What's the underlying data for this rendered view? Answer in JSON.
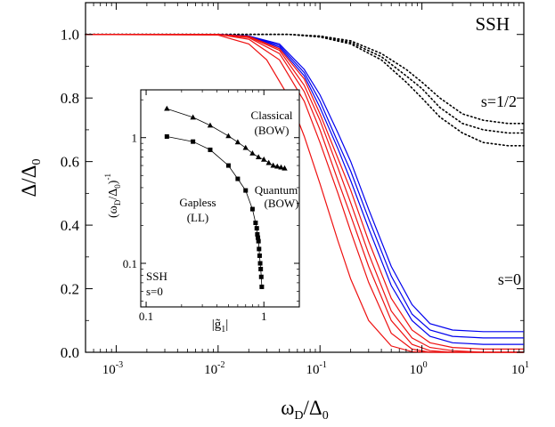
{
  "chart_data": [
    {
      "type": "line",
      "title": "",
      "xlabel_main": "ω",
      "xlabel_sub": "D",
      "xlabel_mid": "/Δ",
      "xlabel_sub2": "0",
      "ylabel_main": "Δ/Δ",
      "ylabel_sub": "0",
      "x_scale": "log",
      "xlim": [
        0.0005,
        10
      ],
      "ylim": [
        0,
        1.1
      ],
      "x_ticks": [
        0.001,
        0.01,
        0.1,
        1,
        10
      ],
      "x_tick_labels": [
        {
          "base": "10",
          "exp": "-3"
        },
        {
          "base": "10",
          "exp": "-2"
        },
        {
          "base": "10",
          "exp": "-1"
        },
        {
          "base": "10",
          "exp": "0"
        },
        {
          "base": "10",
          "exp": "1"
        }
      ],
      "y_ticks": [
        0.0,
        0.2,
        0.4,
        0.6,
        0.8,
        1.0
      ],
      "y_tick_labels": [
        "0.0",
        "0.2",
        "0.4",
        "0.6",
        "0.8",
        "1.0"
      ],
      "annotations": {
        "corner_label": "SSH",
        "upper_curves": "s=1/2",
        "lower_curves": "s=0"
      },
      "grid": false,
      "series_style": [
        {
          "group": "dotted",
          "color": "#000000",
          "dash": "dotted"
        },
        {
          "group": "blue",
          "color": "#0000ee",
          "dash": "solid"
        },
        {
          "group": "red",
          "color": "#ee1111",
          "dash": "solid"
        }
      ],
      "series": [
        {
          "group": "dotted",
          "x": [
            0.0005,
            0.01,
            0.05,
            0.1,
            0.2,
            0.4,
            0.7,
            1.0,
            1.5,
            2.5,
            4.0,
            7.0,
            10.0
          ],
          "y": [
            1.0,
            1.0,
            1.0,
            0.995,
            0.98,
            0.94,
            0.89,
            0.85,
            0.8,
            0.75,
            0.73,
            0.72,
            0.72
          ]
        },
        {
          "group": "dotted",
          "x": [
            0.0005,
            0.01,
            0.05,
            0.1,
            0.2,
            0.4,
            0.7,
            1.0,
            1.5,
            2.5,
            4.0,
            7.0,
            10.0
          ],
          "y": [
            1.0,
            1.0,
            1.0,
            0.994,
            0.975,
            0.93,
            0.87,
            0.83,
            0.77,
            0.72,
            0.7,
            0.69,
            0.69
          ]
        },
        {
          "group": "dotted",
          "x": [
            0.0005,
            0.01,
            0.05,
            0.1,
            0.2,
            0.4,
            0.7,
            1.0,
            1.5,
            2.5,
            4.0,
            7.0,
            10.0
          ],
          "y": [
            1.0,
            1.0,
            1.0,
            0.992,
            0.97,
            0.92,
            0.85,
            0.8,
            0.74,
            0.69,
            0.66,
            0.65,
            0.65
          ]
        },
        {
          "group": "blue",
          "x": [
            0.0005,
            0.01,
            0.02,
            0.04,
            0.07,
            0.1,
            0.15,
            0.2,
            0.3,
            0.5,
            0.8,
            1.2,
            2.0,
            4.0,
            10.0
          ],
          "y": [
            1.0,
            1.0,
            0.995,
            0.97,
            0.89,
            0.81,
            0.69,
            0.6,
            0.45,
            0.27,
            0.15,
            0.09,
            0.07,
            0.065,
            0.065
          ]
        },
        {
          "group": "blue",
          "x": [
            0.0005,
            0.01,
            0.02,
            0.04,
            0.07,
            0.1,
            0.15,
            0.2,
            0.3,
            0.5,
            0.8,
            1.2,
            2.0,
            4.0,
            10.0
          ],
          "y": [
            1.0,
            1.0,
            0.995,
            0.965,
            0.88,
            0.79,
            0.66,
            0.57,
            0.42,
            0.24,
            0.12,
            0.07,
            0.05,
            0.045,
            0.045
          ]
        },
        {
          "group": "blue",
          "x": [
            0.0005,
            0.01,
            0.02,
            0.04,
            0.07,
            0.1,
            0.15,
            0.2,
            0.3,
            0.5,
            0.8,
            1.2,
            2.0,
            4.0,
            10.0
          ],
          "y": [
            1.0,
            1.0,
            0.995,
            0.96,
            0.87,
            0.77,
            0.64,
            0.54,
            0.39,
            0.21,
            0.1,
            0.05,
            0.03,
            0.025,
            0.025
          ]
        },
        {
          "group": "red",
          "x": [
            0.0005,
            0.01,
            0.02,
            0.04,
            0.07,
            0.1,
            0.15,
            0.2,
            0.3,
            0.5,
            0.8,
            1.2,
            2.0,
            4.0,
            10.0
          ],
          "y": [
            1.0,
            1.0,
            0.994,
            0.955,
            0.86,
            0.75,
            0.61,
            0.51,
            0.35,
            0.17,
            0.07,
            0.03,
            0.015,
            0.01,
            0.01
          ]
        },
        {
          "group": "red",
          "x": [
            0.0005,
            0.01,
            0.02,
            0.04,
            0.07,
            0.1,
            0.15,
            0.2,
            0.3,
            0.5,
            0.8,
            1.2,
            2.0,
            4.0,
            10.0
          ],
          "y": [
            1.0,
            1.0,
            0.992,
            0.95,
            0.84,
            0.73,
            0.58,
            0.47,
            0.31,
            0.13,
            0.045,
            0.015,
            0.005,
            0.0,
            0.0
          ]
        },
        {
          "group": "red",
          "x": [
            0.0005,
            0.01,
            0.02,
            0.04,
            0.07,
            0.1,
            0.15,
            0.2,
            0.3,
            0.5,
            0.8,
            1.2,
            2.0,
            4.0,
            10.0
          ],
          "y": [
            1.0,
            1.0,
            0.99,
            0.94,
            0.82,
            0.7,
            0.54,
            0.43,
            0.27,
            0.1,
            0.025,
            0.005,
            0.0,
            0.0,
            0.0
          ]
        },
        {
          "group": "red",
          "x": [
            0.0005,
            0.01,
            0.02,
            0.04,
            0.07,
            0.1,
            0.15,
            0.2,
            0.3,
            0.5,
            0.8,
            1.2,
            2.0,
            4.0,
            10.0
          ],
          "y": [
            1.0,
            1.0,
            0.985,
            0.92,
            0.79,
            0.66,
            0.5,
            0.38,
            0.22,
            0.06,
            0.01,
            0.0,
            0.0,
            0.0,
            0.0
          ]
        },
        {
          "group": "red",
          "x": [
            0.0005,
            0.01,
            0.02,
            0.03,
            0.05,
            0.07,
            0.1,
            0.15,
            0.2,
            0.3,
            0.5,
            0.8,
            1.2,
            2.0,
            10.0
          ],
          "y": [
            1.0,
            0.998,
            0.97,
            0.92,
            0.8,
            0.68,
            0.53,
            0.35,
            0.23,
            0.1,
            0.02,
            0.002,
            0.0,
            0.0,
            0.0
          ]
        }
      ]
    },
    {
      "type": "scatter",
      "title": "",
      "xlabel_pre": "|",
      "xlabel_main": "g̃",
      "xlabel_sub": "1",
      "xlabel_post": "|",
      "ylabel_main": "(ω",
      "ylabel_sub": "D",
      "ylabel_mid": "/Δ",
      "ylabel_sub2": "0",
      "ylabel_post": ")",
      "ylabel_sup": "-1",
      "x_scale": "log",
      "y_scale": "log",
      "xlim": [
        0.09,
        2.0
      ],
      "ylim": [
        0.045,
        2.4
      ],
      "x_ticks": [
        0.1,
        1
      ],
      "x_tick_labels": [
        "0.1",
        "1"
      ],
      "y_ticks": [
        0.1,
        1
      ],
      "y_tick_labels": [
        "0.1",
        "1"
      ],
      "annotations": {
        "classical": "Classical",
        "classical_bow": "(BOW)",
        "quantum": "Quantum",
        "quantum_bow": "(BOW)",
        "gapless": "Gapless",
        "gapless_ll": "(LL)",
        "ssh": "SSH",
        "s0": "s=0"
      },
      "series": [
        {
          "marker": "triangle",
          "x": [
            0.15,
            0.25,
            0.35,
            0.5,
            0.6,
            0.7,
            0.8,
            0.9,
            1.0,
            1.1,
            1.2,
            1.3,
            1.4,
            1.5
          ],
          "y": [
            1.7,
            1.45,
            1.25,
            1.03,
            0.92,
            0.83,
            0.75,
            0.7,
            0.67,
            0.63,
            0.6,
            0.59,
            0.58,
            0.57
          ]
        },
        {
          "marker": "square",
          "x": [
            0.15,
            0.25,
            0.35,
            0.5,
            0.6,
            0.7,
            0.8,
            0.85,
            0.87,
            0.88,
            0.89,
            0.9,
            0.91,
            0.92,
            0.93,
            0.94,
            0.95,
            0.96
          ],
          "y": [
            1.02,
            0.93,
            0.8,
            0.6,
            0.47,
            0.38,
            0.27,
            0.21,
            0.19,
            0.17,
            0.16,
            0.15,
            0.13,
            0.115,
            0.1,
            0.09,
            0.078,
            0.065
          ]
        }
      ]
    }
  ]
}
